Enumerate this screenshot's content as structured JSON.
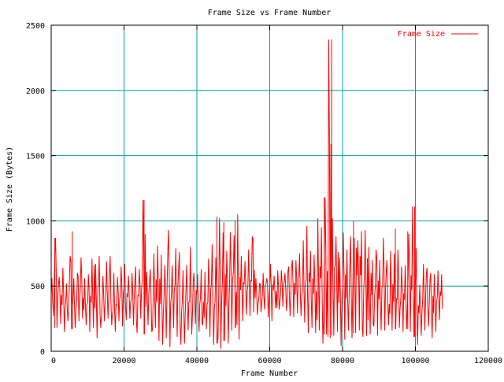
{
  "chart_data": {
    "type": "line",
    "title": "Frame Size vs Frame Number",
    "xlabel": "Frame Number",
    "ylabel": "Frame Size (Bytes)",
    "xlim": [
      0,
      120000
    ],
    "ylim": [
      0,
      2500
    ],
    "x_ticks": [
      0,
      20000,
      40000,
      60000,
      80000,
      100000,
      120000
    ],
    "x_tick_labels": [
      "0",
      "20000",
      "40000",
      "60000",
      "80000",
      "100000",
      "120000"
    ],
    "y_ticks": [
      0,
      500,
      1000,
      1500,
      2000,
      2500
    ],
    "y_tick_labels": [
      "0",
      "500",
      "1000",
      "1500",
      "2000",
      "2500"
    ],
    "grid": true,
    "grid_color": "#00a0a0",
    "legend_position": "top-right",
    "series": [
      {
        "name": "Frame Size",
        "color": "#ff0000",
        "x_start": 0,
        "x_end": 107500,
        "envelope_step": 1000,
        "min": [
          270,
          180,
          210,
          150,
          230,
          170,
          180,
          230,
          250,
          200,
          150,
          180,
          100,
          180,
          230,
          250,
          200,
          150,
          230,
          190,
          240,
          250,
          200,
          140,
          250,
          130,
          200,
          150,
          180,
          80,
          50,
          100,
          30,
          180,
          110,
          50,
          60,
          160,
          130,
          210,
          150,
          200,
          170,
          110,
          50,
          60,
          20,
          80,
          60,
          160,
          180,
          90,
          230,
          280,
          270,
          300,
          280,
          300,
          320,
          260,
          230,
          330,
          320,
          340,
          310,
          270,
          260,
          290,
          270,
          220,
          140,
          180,
          140,
          160,
          60,
          130,
          100,
          120,
          150,
          40,
          90,
          160,
          100,
          140,
          160,
          110,
          120,
          130,
          190,
          120,
          160,
          160,
          200,
          160,
          170,
          180,
          150,
          170,
          150,
          110,
          50,
          120,
          160,
          190,
          100,
          150,
          240,
          250
        ],
        "max": [
          560,
          870,
          570,
          640,
          520,
          730,
          560,
          600,
          720,
          560,
          590,
          710,
          670,
          730,
          580,
          690,
          730,
          600,
          570,
          650,
          670,
          580,
          600,
          650,
          630,
          1160,
          610,
          630,
          750,
          810,
          740,
          660,
          930,
          660,
          790,
          760,
          620,
          660,
          800,
          600,
          590,
          630,
          610,
          710,
          820,
          720,
          1020,
          910,
          770,
          910,
          890,
          1050,
          730,
          690,
          780,
          880,
          560,
          520,
          600,
          560,
          670,
          580,
          620,
          620,
          600,
          650,
          700,
          700,
          750,
          850,
          960,
          770,
          740,
          1020,
          950,
          1180,
          2390,
          1020,
          880,
          720,
          910,
          780,
          880,
          870,
          850,
          920,
          930,
          800,
          700,
          780,
          700,
          870,
          700,
          770,
          750,
          780,
          650,
          660,
          900,
          1110,
          790,
          510,
          670,
          640,
          600,
          590,
          620,
          590
        ],
        "spikes": [
          [
            1000,
            870
          ],
          [
            5800,
            920
          ],
          [
            25500,
            1160
          ],
          [
            45500,
            1030
          ],
          [
            47400,
            990
          ],
          [
            50500,
            1000
          ],
          [
            75000,
            1180
          ],
          [
            77000,
            2390
          ],
          [
            83000,
            1000
          ],
          [
            99800,
            1110
          ],
          [
            94500,
            940
          ],
          [
            97900,
            920
          ]
        ]
      }
    ]
  }
}
